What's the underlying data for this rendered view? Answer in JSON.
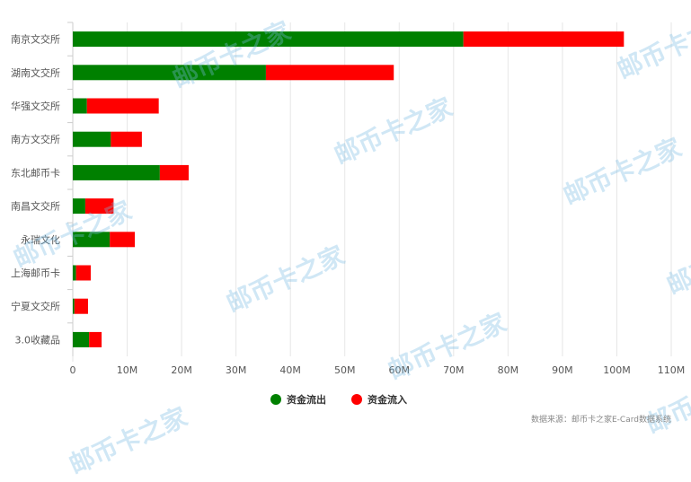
{
  "chart_data": {
    "type": "bar",
    "orientation": "horizontal",
    "stacked": true,
    "categories": [
      "南京文交所",
      "湖南文交所",
      "华强文交所",
      "南方文交所",
      "东北邮币卡",
      "南昌文交所",
      "永瑞文化",
      "上海邮币卡",
      "宁夏文交所",
      "3.0收藏品"
    ],
    "series": [
      {
        "name": "资金流出",
        "color": "#008000",
        "values": [
          71.8,
          35.5,
          2.6,
          7.0,
          16.0,
          2.3,
          6.8,
          0.6,
          0.3,
          3.0
        ]
      },
      {
        "name": "资金流入",
        "color": "#ff0000",
        "values": [
          29.5,
          23.5,
          13.2,
          5.7,
          5.3,
          5.2,
          4.6,
          2.7,
          2.5,
          2.3
        ]
      }
    ],
    "xlim": [
      0,
      110
    ],
    "x_ticks": [
      "0",
      "10M",
      "20M",
      "30M",
      "40M",
      "50M",
      "60M",
      "70M",
      "80M",
      "90M",
      "100M",
      "110M"
    ],
    "grid": true,
    "legend_position": "bottom"
  },
  "watermark_text": "邮币卡之家",
  "source_text": "数据来源：邮币卡之家E-Card数据系统"
}
